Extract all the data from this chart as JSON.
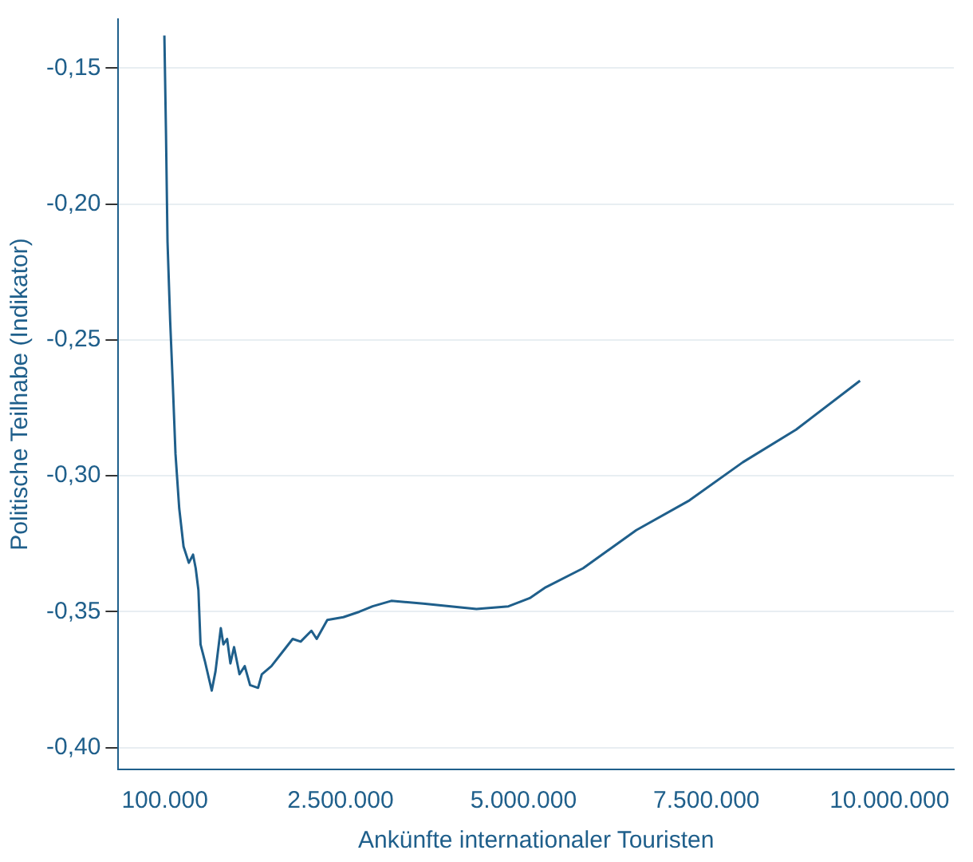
{
  "chart_data": {
    "type": "line",
    "xlabel": "Ankünfte internationaler Touristen",
    "ylabel": "Politische Teilhabe (Indikator)",
    "x": [
      94000,
      116000,
      137000,
      173000,
      210000,
      246000,
      297000,
      356000,
      428000,
      486000,
      522000,
      559000,
      588000,
      646000,
      741000,
      792000,
      865000,
      900000,
      951000,
      996000,
      1046000,
      1120000,
      1192000,
      1265000,
      1374000,
      1425000,
      1556000,
      1702000,
      1847000,
      1956000,
      2103000,
      2175000,
      2320000,
      2539000,
      2757000,
      2939000,
      3194000,
      3631000,
      4358000,
      4795000,
      5085000,
      5303000,
      5814000,
      6541000,
      7269000,
      7997000,
      8725000,
      9598000
    ],
    "series": [
      {
        "color": "#1f5f8b",
        "values": [
          -0.138,
          -0.174,
          -0.214,
          -0.243,
          -0.267,
          -0.292,
          -0.312,
          -0.326,
          -0.332,
          -0.329,
          -0.334,
          -0.342,
          -0.362,
          -0.368,
          -0.379,
          -0.372,
          -0.356,
          -0.362,
          -0.36,
          -0.369,
          -0.363,
          -0.373,
          -0.37,
          -0.377,
          -0.378,
          -0.373,
          -0.37,
          -0.365,
          -0.36,
          -0.361,
          -0.357,
          -0.36,
          -0.353,
          -0.352,
          -0.35,
          -0.348,
          -0.346,
          -0.347,
          -0.349,
          -0.348,
          -0.345,
          -0.341,
          -0.334,
          -0.32,
          -0.309,
          -0.295,
          -0.283,
          -0.265
        ]
      }
    ],
    "xlim": [
      -535000,
      10880000
    ],
    "ylim": [
      -0.408,
      -0.132
    ],
    "xticks": [
      {
        "value": 100000,
        "label": "100.000"
      },
      {
        "value": 2500000,
        "label": "2.500.000"
      },
      {
        "value": 5000000,
        "label": "5.000.000"
      },
      {
        "value": 7500000,
        "label": "7.500.000"
      },
      {
        "value": 10000000,
        "label": "10.000.000"
      }
    ],
    "yticks": [
      {
        "value": -0.4,
        "label": "-0,40"
      },
      {
        "value": -0.35,
        "label": "-0,35"
      },
      {
        "value": -0.3,
        "label": "-0,30"
      },
      {
        "value": -0.25,
        "label": "-0,25"
      },
      {
        "value": -0.2,
        "label": "-0,20"
      },
      {
        "value": -0.15,
        "label": "-0,15"
      }
    ],
    "grid": "y",
    "legend": false,
    "marker": "none",
    "line_style": "solid"
  }
}
